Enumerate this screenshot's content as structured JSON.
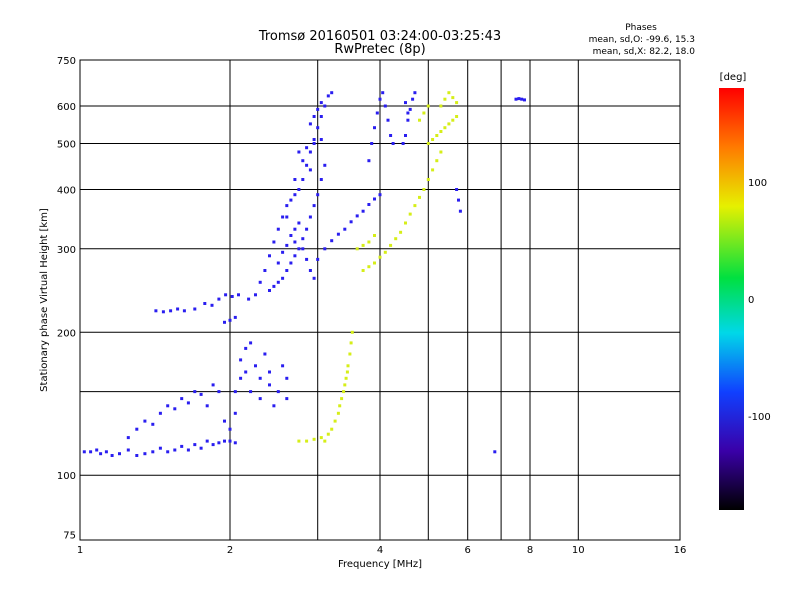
{
  "chart_data": {
    "type": "scatter",
    "title": "Tromsø 20160501 03:24:00-03:25:43",
    "subtitle": "RwPretec (8p)",
    "xlabel": "Frequency [MHz]",
    "ylabel": "Stationary phase Virtual Height [km]",
    "x_scale": "log",
    "y_scale": "log",
    "xlim": [
      1,
      16
    ],
    "ylim": [
      73,
      750
    ],
    "x_ticks": [
      1,
      2,
      4,
      6,
      8,
      10,
      16
    ],
    "x_tick_labels": [
      "1",
      "2",
      "4",
      "6",
      "8",
      "10",
      "16"
    ],
    "x_grid": [
      1,
      2,
      3,
      4,
      5,
      6,
      7,
      8,
      10,
      16
    ],
    "y_ticks": [
      75,
      100,
      200,
      300,
      400,
      500,
      600,
      750
    ],
    "y_tick_labels": [
      "75",
      "100",
      "200",
      "300",
      "400",
      "500",
      "600",
      "750"
    ],
    "y_grid": [
      100,
      150,
      200,
      300,
      400,
      500,
      600,
      750
    ],
    "grid": true,
    "stats": {
      "title": "Phases",
      "line_o": "mean, sd,O: -99.6, 15.3",
      "line_x": "mean, sd,X:  82.2, 18.0"
    },
    "colorbar": {
      "label": "[deg]",
      "range": [
        -180,
        180
      ],
      "ticks": [
        100,
        0,
        -100
      ],
      "tick_labels": [
        "100",
        "0",
        "-100"
      ]
    },
    "colors": {
      "o_mode": "#2a1ef0",
      "x_mode": "#d6ee18"
    },
    "series": [
      {
        "mode": "O",
        "phase_mean": -99.6,
        "points": [
          [
            1.02,
            112
          ],
          [
            1.05,
            112
          ],
          [
            1.08,
            113
          ],
          [
            1.1,
            111
          ],
          [
            1.13,
            112
          ],
          [
            1.16,
            110
          ],
          [
            1.2,
            111
          ],
          [
            1.25,
            113
          ],
          [
            1.3,
            110
          ],
          [
            1.35,
            111
          ],
          [
            1.4,
            112
          ],
          [
            1.45,
            114
          ],
          [
            1.5,
            112
          ],
          [
            1.55,
            113
          ],
          [
            1.6,
            115
          ],
          [
            1.65,
            113
          ],
          [
            1.7,
            116
          ],
          [
            1.75,
            114
          ],
          [
            1.8,
            118
          ],
          [
            1.85,
            116
          ],
          [
            1.9,
            117
          ],
          [
            1.95,
            118
          ],
          [
            2.0,
            118
          ],
          [
            2.05,
            117
          ],
          [
            1.25,
            120
          ],
          [
            1.3,
            125
          ],
          [
            1.35,
            130
          ],
          [
            1.4,
            128
          ],
          [
            1.45,
            135
          ],
          [
            1.5,
            140
          ],
          [
            1.55,
            138
          ],
          [
            1.6,
            145
          ],
          [
            1.65,
            142
          ],
          [
            1.7,
            150
          ],
          [
            1.75,
            148
          ],
          [
            1.8,
            140
          ],
          [
            1.85,
            155
          ],
          [
            1.9,
            150
          ],
          [
            1.95,
            130
          ],
          [
            2.0,
            125
          ],
          [
            2.05,
            135
          ],
          [
            2.05,
            150
          ],
          [
            2.1,
            160
          ],
          [
            2.1,
            175
          ],
          [
            2.15,
            165
          ],
          [
            2.15,
            185
          ],
          [
            2.2,
            150
          ],
          [
            2.2,
            190
          ],
          [
            2.25,
            170
          ],
          [
            2.3,
            160
          ],
          [
            2.3,
            145
          ],
          [
            2.35,
            180
          ],
          [
            2.4,
            155
          ],
          [
            2.4,
            165
          ],
          [
            2.45,
            140
          ],
          [
            2.5,
            150
          ],
          [
            2.55,
            170
          ],
          [
            2.6,
            145
          ],
          [
            2.6,
            160
          ],
          [
            1.42,
            222
          ],
          [
            1.47,
            221
          ],
          [
            1.52,
            222
          ],
          [
            1.57,
            224
          ],
          [
            1.62,
            222
          ],
          [
            1.7,
            224
          ],
          [
            1.78,
            230
          ],
          [
            1.84,
            228
          ],
          [
            1.9,
            235
          ],
          [
            1.96,
            240
          ],
          [
            2.02,
            238
          ],
          [
            2.08,
            240
          ],
          [
            2.18,
            235
          ],
          [
            2.25,
            240
          ],
          [
            2.3,
            255
          ],
          [
            2.35,
            270
          ],
          [
            2.4,
            290
          ],
          [
            2.45,
            310
          ],
          [
            2.5,
            330
          ],
          [
            2.55,
            350
          ],
          [
            2.6,
            370
          ],
          [
            2.65,
            380
          ],
          [
            2.7,
            390
          ],
          [
            2.75,
            400
          ],
          [
            2.8,
            420
          ],
          [
            2.85,
            450
          ],
          [
            2.9,
            480
          ],
          [
            2.95,
            510
          ],
          [
            3.0,
            540
          ],
          [
            3.05,
            570
          ],
          [
            3.1,
            600
          ],
          [
            3.15,
            630
          ],
          [
            3.2,
            640
          ],
          [
            2.4,
            245
          ],
          [
            2.45,
            250
          ],
          [
            2.5,
            255
          ],
          [
            2.55,
            260
          ],
          [
            2.6,
            270
          ],
          [
            2.65,
            280
          ],
          [
            2.7,
            290
          ],
          [
            2.75,
            300
          ],
          [
            2.8,
            315
          ],
          [
            2.85,
            330
          ],
          [
            2.9,
            350
          ],
          [
            2.95,
            370
          ],
          [
            3.0,
            390
          ],
          [
            3.05,
            420
          ],
          [
            3.1,
            450
          ],
          [
            2.5,
            280
          ],
          [
            2.55,
            295
          ],
          [
            2.6,
            305
          ],
          [
            2.65,
            320
          ],
          [
            2.7,
            310
          ],
          [
            2.75,
            340
          ],
          [
            2.6,
            350
          ],
          [
            2.7,
            330
          ],
          [
            2.8,
            300
          ],
          [
            2.85,
            285
          ],
          [
            2.9,
            270
          ],
          [
            2.95,
            260
          ],
          [
            3.0,
            285
          ],
          [
            3.1,
            300
          ],
          [
            3.2,
            312
          ],
          [
            3.3,
            322
          ],
          [
            3.4,
            330
          ],
          [
            3.5,
            342
          ],
          [
            3.6,
            352
          ],
          [
            3.7,
            360
          ],
          [
            3.8,
            372
          ],
          [
            3.9,
            382
          ],
          [
            4.0,
            390
          ],
          [
            2.75,
            480
          ],
          [
            2.85,
            490
          ],
          [
            2.95,
            500
          ],
          [
            3.05,
            510
          ],
          [
            2.7,
            420
          ],
          [
            2.8,
            460
          ],
          [
            2.9,
            440
          ],
          [
            3.8,
            460
          ],
          [
            3.85,
            500
          ],
          [
            3.9,
            540
          ],
          [
            3.95,
            580
          ],
          [
            4.0,
            620
          ],
          [
            4.05,
            640
          ],
          [
            4.1,
            600
          ],
          [
            4.15,
            560
          ],
          [
            4.2,
            520
          ],
          [
            4.25,
            500
          ],
          [
            4.45,
            500
          ],
          [
            4.5,
            520
          ],
          [
            4.55,
            560
          ],
          [
            4.6,
            590
          ],
          [
            4.65,
            620
          ],
          [
            4.7,
            640
          ],
          [
            4.55,
            580
          ],
          [
            4.5,
            610
          ],
          [
            5.7,
            400
          ],
          [
            5.75,
            380
          ],
          [
            5.8,
            360
          ],
          [
            7.5,
            620
          ],
          [
            7.6,
            622
          ],
          [
            7.7,
            620
          ],
          [
            7.8,
            618
          ],
          [
            2.9,
            550
          ],
          [
            2.95,
            570
          ],
          [
            3.0,
            590
          ],
          [
            3.05,
            610
          ],
          [
            1.95,
            210
          ],
          [
            2.0,
            212
          ],
          [
            2.05,
            215
          ],
          [
            6.8,
            112
          ]
        ]
      },
      {
        "mode": "X",
        "phase_mean": 82.2,
        "points": [
          [
            2.75,
            118
          ],
          [
            2.85,
            118
          ],
          [
            2.95,
            119
          ],
          [
            3.05,
            120
          ],
          [
            3.1,
            118
          ],
          [
            3.15,
            122
          ],
          [
            3.2,
            125
          ],
          [
            3.25,
            130
          ],
          [
            3.3,
            135
          ],
          [
            3.32,
            140
          ],
          [
            3.35,
            145
          ],
          [
            3.38,
            150
          ],
          [
            3.4,
            155
          ],
          [
            3.42,
            160
          ],
          [
            3.44,
            165
          ],
          [
            3.45,
            170
          ],
          [
            3.48,
            180
          ],
          [
            3.5,
            190
          ],
          [
            3.52,
            200
          ],
          [
            3.7,
            270
          ],
          [
            3.8,
            275
          ],
          [
            3.9,
            280
          ],
          [
            4.0,
            288
          ],
          [
            4.1,
            295
          ],
          [
            4.2,
            305
          ],
          [
            4.3,
            315
          ],
          [
            4.4,
            325
          ],
          [
            4.5,
            340
          ],
          [
            4.6,
            355
          ],
          [
            4.7,
            370
          ],
          [
            4.8,
            385
          ],
          [
            4.9,
            400
          ],
          [
            5.0,
            420
          ],
          [
            5.1,
            440
          ],
          [
            5.2,
            460
          ],
          [
            5.3,
            480
          ],
          [
            5.0,
            500
          ],
          [
            5.1,
            510
          ],
          [
            5.2,
            520
          ],
          [
            5.3,
            530
          ],
          [
            5.4,
            540
          ],
          [
            5.5,
            550
          ],
          [
            5.6,
            560
          ],
          [
            5.7,
            570
          ],
          [
            5.3,
            600
          ],
          [
            5.4,
            620
          ],
          [
            5.5,
            640
          ],
          [
            5.6,
            625
          ],
          [
            5.7,
            610
          ],
          [
            3.6,
            300
          ],
          [
            3.7,
            305
          ],
          [
            3.8,
            310
          ],
          [
            3.9,
            320
          ],
          [
            4.8,
            560
          ],
          [
            4.9,
            580
          ],
          [
            5.0,
            600
          ]
        ]
      }
    ]
  }
}
